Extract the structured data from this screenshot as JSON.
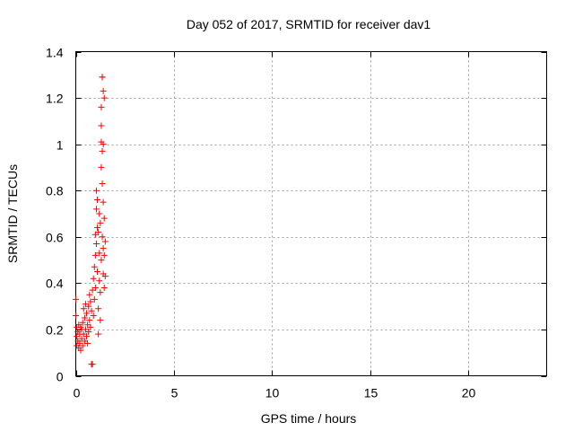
{
  "chart_data": {
    "type": "scatter",
    "title": "Day 052 of 2017, SRMTID for receiver dav1",
    "xlabel": "GPS time / hours",
    "ylabel": "SRMTID / TECUs",
    "xlim": [
      0,
      24
    ],
    "ylim": [
      0,
      1.4
    ],
    "xticks": [
      0,
      5,
      10,
      15,
      20
    ],
    "xtick_labels": [
      "0",
      "5",
      "10",
      "15",
      "20"
    ],
    "yticks": [
      0,
      0.2,
      0.4,
      0.6,
      0.8,
      1.0,
      1.2,
      1.4
    ],
    "ytick_labels": [
      "0",
      "0.2",
      "0.4",
      "0.6",
      "0.8",
      "1",
      "1.2",
      "1.4"
    ],
    "grid": true,
    "marker": "+",
    "marker_color": "#ff0000",
    "series": [
      {
        "name": "dav1",
        "points": [
          [
            0.0,
            0.33
          ],
          [
            0.0,
            0.26
          ],
          [
            0.05,
            0.21
          ],
          [
            0.05,
            0.17
          ],
          [
            0.05,
            0.13
          ],
          [
            0.1,
            0.15
          ],
          [
            0.1,
            0.19
          ],
          [
            0.15,
            0.22
          ],
          [
            0.15,
            0.12
          ],
          [
            0.2,
            0.18
          ],
          [
            0.2,
            0.14
          ],
          [
            0.25,
            0.21
          ],
          [
            0.25,
            0.11
          ],
          [
            0.3,
            0.16
          ],
          [
            0.3,
            0.2
          ],
          [
            0.35,
            0.13
          ],
          [
            0.35,
            0.23
          ],
          [
            0.4,
            0.18
          ],
          [
            0.4,
            0.29
          ],
          [
            0.45,
            0.15
          ],
          [
            0.45,
            0.25
          ],
          [
            0.5,
            0.2
          ],
          [
            0.5,
            0.31
          ],
          [
            0.55,
            0.17
          ],
          [
            0.55,
            0.27
          ],
          [
            0.6,
            0.22
          ],
          [
            0.6,
            0.14
          ],
          [
            0.65,
            0.3
          ],
          [
            0.65,
            0.19
          ],
          [
            0.7,
            0.24
          ],
          [
            0.7,
            0.35
          ],
          [
            0.75,
            0.21
          ],
          [
            0.75,
            0.32
          ],
          [
            0.8,
            0.05
          ],
          [
            0.8,
            0.28
          ],
          [
            0.85,
            0.37
          ],
          [
            0.85,
            0.05
          ],
          [
            0.9,
            0.42
          ],
          [
            0.9,
            0.26
          ],
          [
            0.95,
            0.47
          ],
          [
            0.95,
            0.33
          ],
          [
            1.0,
            0.52
          ],
          [
            1.0,
            0.38
          ],
          [
            1.0,
            0.61
          ],
          [
            1.05,
            0.72
          ],
          [
            1.05,
            0.8
          ],
          [
            1.05,
            0.57
          ],
          [
            1.1,
            0.64
          ],
          [
            1.1,
            0.76
          ],
          [
            1.1,
            0.45
          ],
          [
            1.15,
            0.18
          ],
          [
            1.15,
            0.29
          ],
          [
            1.15,
            0.62
          ],
          [
            1.2,
            0.7
          ],
          [
            1.2,
            0.53
          ],
          [
            1.2,
            0.41
          ],
          [
            1.25,
            0.36
          ],
          [
            1.25,
            0.24
          ],
          [
            1.25,
            0.66
          ],
          [
            1.3,
            1.08
          ],
          [
            1.3,
            0.9
          ],
          [
            1.3,
            1.01
          ],
          [
            1.3,
            1.16
          ],
          [
            1.3,
            0.5
          ],
          [
            1.35,
            1.29
          ],
          [
            1.35,
            1.29
          ],
          [
            1.35,
            0.97
          ],
          [
            1.35,
            0.83
          ],
          [
            1.35,
            0.6
          ],
          [
            1.4,
            1.23
          ],
          [
            1.4,
            1.0
          ],
          [
            1.4,
            0.75
          ],
          [
            1.4,
            0.55
          ],
          [
            1.4,
            0.44
          ],
          [
            1.45,
            1.2
          ],
          [
            1.45,
            0.68
          ],
          [
            1.45,
            0.52
          ],
          [
            1.45,
            0.38
          ],
          [
            1.5,
            0.58
          ],
          [
            1.5,
            0.43
          ]
        ]
      }
    ]
  }
}
